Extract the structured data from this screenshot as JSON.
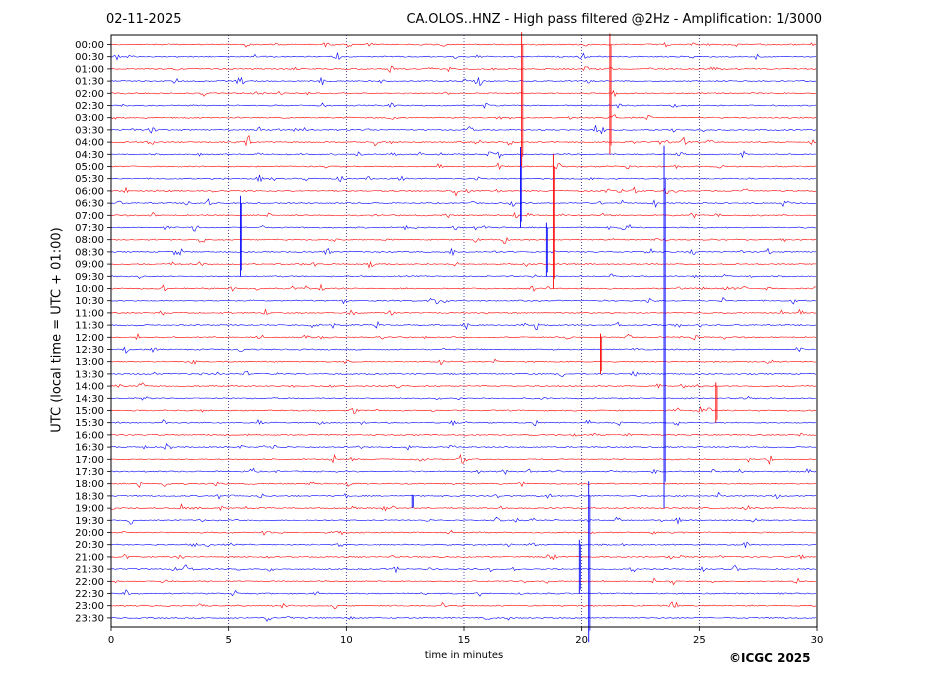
{
  "header": {
    "date": "02-11-2025",
    "title": "CA.OLOS..HNZ - High pass filtered @2Hz - Amplification: 1/3000"
  },
  "footer": {
    "copyright": "©ICGC 2025"
  },
  "chart_data": {
    "type": "line",
    "title": "CA.OLOS..HNZ - High pass filtered @2Hz - Amplification: 1/3000",
    "xlabel": "time in minutes",
    "ylabel": "UTC (local time = UTC + 01:00)",
    "xlim": [
      0,
      30
    ],
    "x_ticks": [
      0,
      5,
      10,
      15,
      20,
      25,
      30
    ],
    "grid": "vertical dotted at 5-minute intervals",
    "y_categories": [
      "00:00",
      "00:30",
      "01:00",
      "01:30",
      "02:00",
      "02:30",
      "03:00",
      "03:30",
      "04:00",
      "04:30",
      "05:00",
      "05:30",
      "06:00",
      "06:30",
      "07:00",
      "07:30",
      "08:00",
      "08:30",
      "09:00",
      "09:30",
      "10:00",
      "10:30",
      "11:00",
      "11:30",
      "12:00",
      "12:30",
      "13:00",
      "13:30",
      "14:00",
      "14:30",
      "15:00",
      "15:30",
      "16:00",
      "16:30",
      "17:00",
      "17:30",
      "18:00",
      "18:30",
      "19:00",
      "19:30",
      "20:00",
      "20:30",
      "21:00",
      "21:30",
      "22:00",
      "22:30",
      "23:00",
      "23:30"
    ],
    "trace_colors": [
      "#ff0000",
      "#0000ff"
    ],
    "color_rule": "alternating by 30-minute row, starting red at 00:00",
    "large_spikes": [
      {
        "row": "04:30",
        "minute": 17.4,
        "amplitude": 6.0
      },
      {
        "row": "00:00",
        "minute": 17.45,
        "amplitude": 10.0
      },
      {
        "row": "00:00",
        "minute": 21.2,
        "amplitude": 9.0
      },
      {
        "row": "06:30",
        "minute": 5.5,
        "amplitude": 6.0
      },
      {
        "row": "05:00",
        "minute": 18.8,
        "amplitude": 10.0
      },
      {
        "row": "07:30",
        "minute": 18.5,
        "amplitude": 4.0
      },
      {
        "row": "12:00",
        "minute": 20.8,
        "amplitude": 3.0
      },
      {
        "row": "05:30",
        "minute": 23.5,
        "amplitude": 27.0
      },
      {
        "row": "14:00",
        "minute": 25.7,
        "amplitude": 3.0
      },
      {
        "row": "18:30",
        "minute": 20.3,
        "amplitude": 12.0
      },
      {
        "row": "20:30",
        "minute": 19.9,
        "amplitude": 4.0
      },
      {
        "row": "18:30",
        "minute": 12.8,
        "amplitude": 1.0
      }
    ]
  }
}
